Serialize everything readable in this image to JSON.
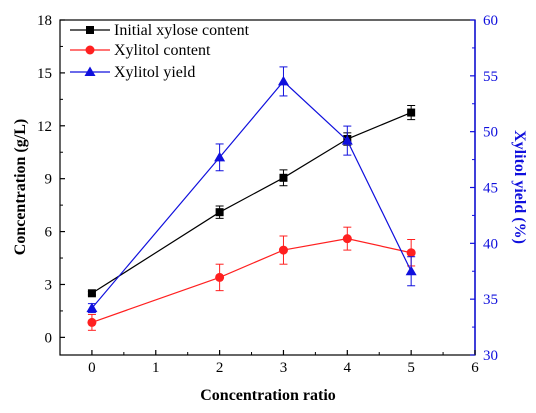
{
  "chart_data": {
    "type": "line",
    "xlabel": "Concentration ratio",
    "ylabel": "Concentration (g/L)",
    "y2label": "Xylitol yield (%)",
    "xlim": [
      -0.5,
      6
    ],
    "ylim": [
      -1,
      18
    ],
    "y2lim": [
      30,
      60
    ],
    "x_ticks": [
      "0",
      "1",
      "2",
      "3",
      "4",
      "5",
      "6"
    ],
    "y_ticks": [
      "0",
      "3",
      "6",
      "9",
      "12",
      "15",
      "18"
    ],
    "y2_ticks": [
      "30",
      "35",
      "40",
      "45",
      "50",
      "55",
      "60"
    ],
    "legend_position": "top-left",
    "series": [
      {
        "name": "Initial xylose content",
        "axis": "left",
        "color": "#000000",
        "marker": "square",
        "x": [
          0,
          2,
          3,
          4,
          5
        ],
        "values": [
          2.5,
          7.1,
          9.05,
          11.25,
          12.75
        ],
        "errors": [
          0.1,
          0.35,
          0.45,
          0.35,
          0.4
        ]
      },
      {
        "name": "Xylitol content",
        "axis": "left",
        "color": "#ff2020",
        "marker": "circle",
        "x": [
          0,
          2,
          3,
          4,
          5
        ],
        "values": [
          0.85,
          3.4,
          4.95,
          5.6,
          4.8
        ],
        "errors": [
          0.45,
          0.75,
          0.8,
          0.65,
          0.75
        ]
      },
      {
        "name": "Xylitol yield",
        "axis": "right",
        "color": "#1010dd",
        "marker": "triangle",
        "x": [
          0,
          2,
          3,
          4,
          5
        ],
        "values": [
          34.2,
          47.7,
          54.5,
          49.2,
          37.5
        ],
        "errors": [
          0.4,
          1.2,
          1.3,
          1.3,
          1.3
        ]
      }
    ]
  }
}
